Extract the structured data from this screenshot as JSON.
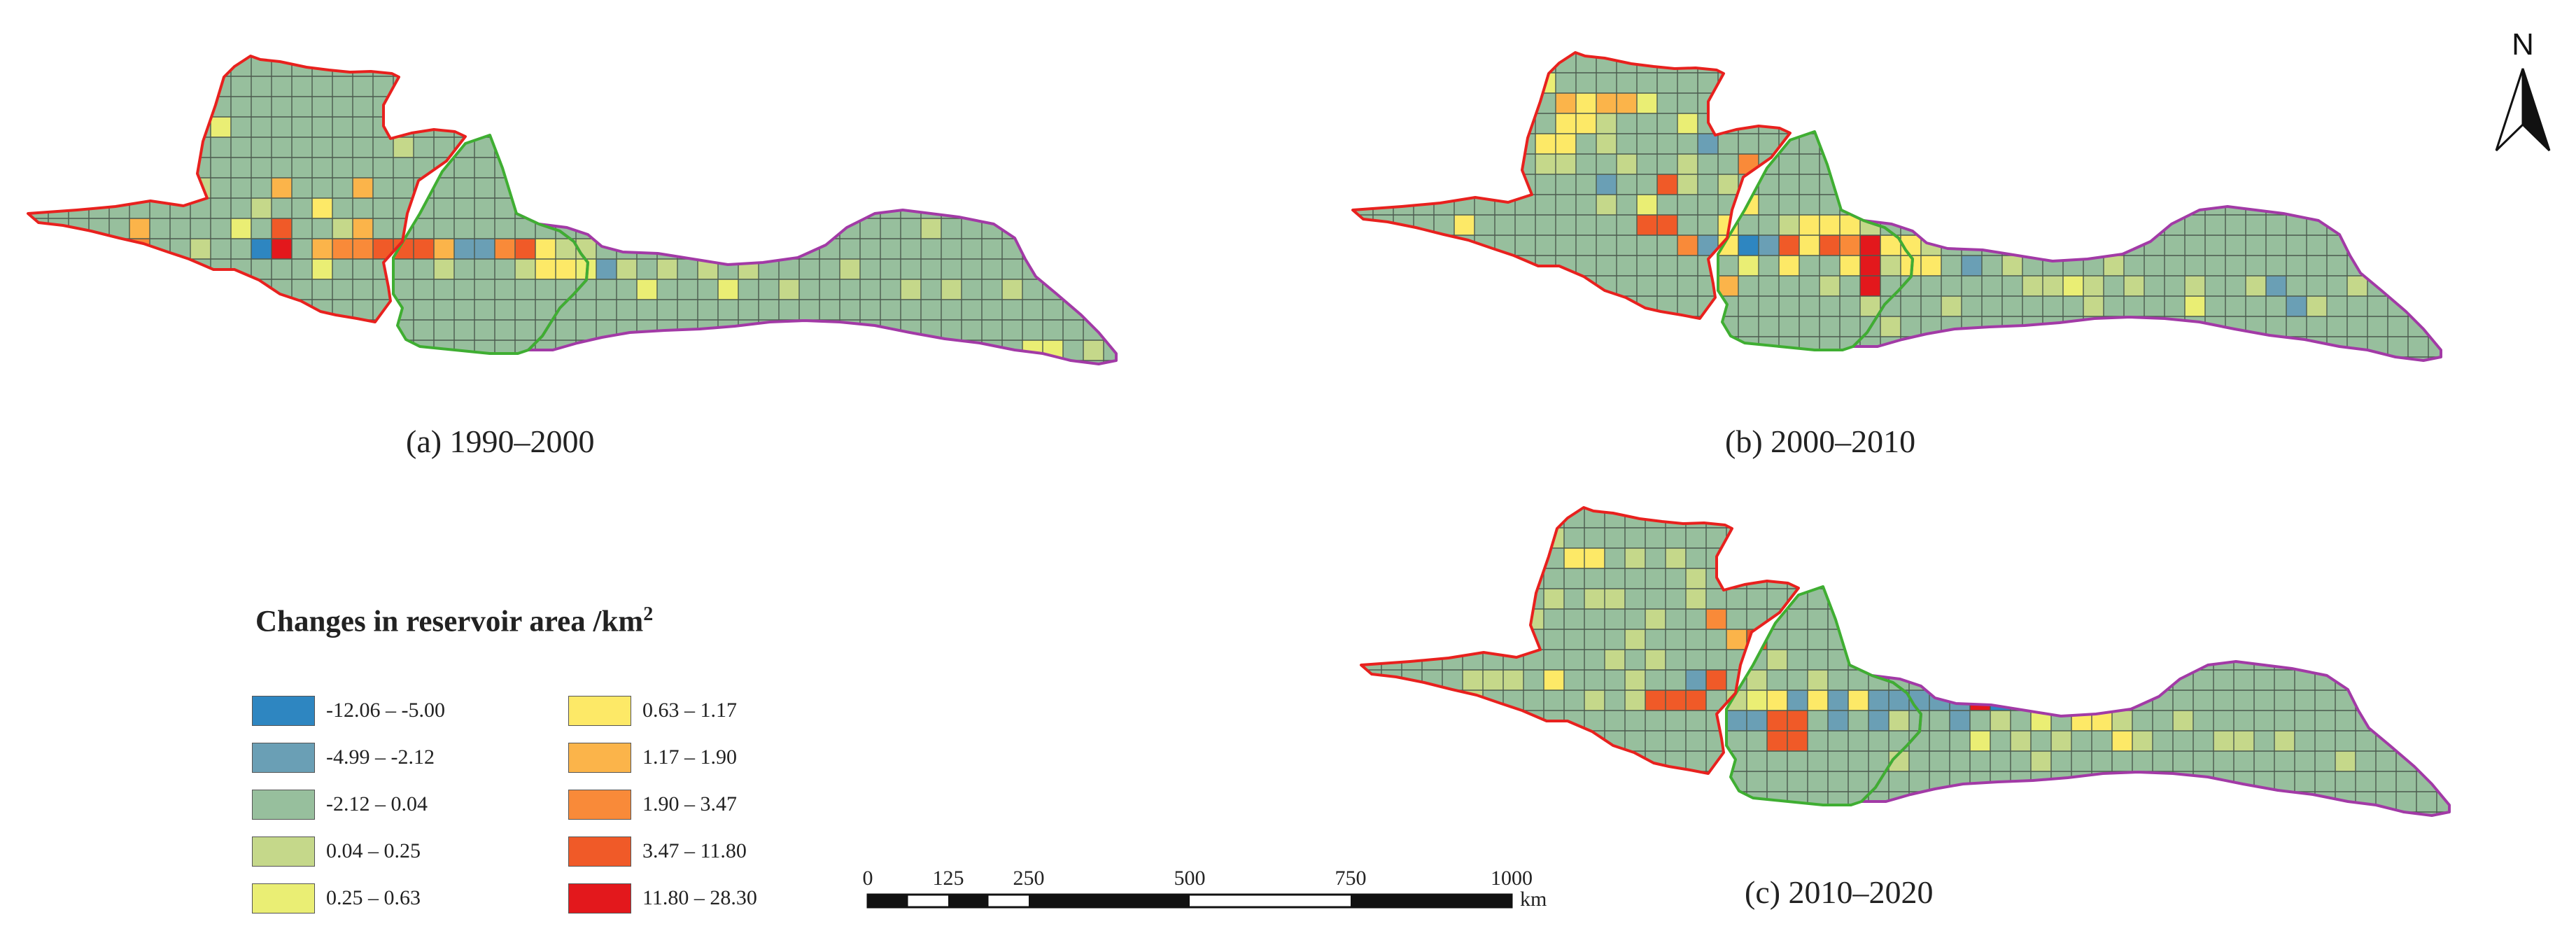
{
  "panels": [
    {
      "label": "(a) 1990–2000"
    },
    {
      "label": "(b) 2000–2010"
    },
    {
      "label": "(c) 2010–2020"
    }
  ],
  "north_arrow": {
    "letter": "N"
  },
  "legend": {
    "title": "Changes in reservoir area /km",
    "title_superscript": "2",
    "classes": [
      {
        "range": "-12.06 – -5.00",
        "color": "#2e86c1"
      },
      {
        "range": "-4.99 – -2.12",
        "color": "#6a9fb5"
      },
      {
        "range": "-2.12 – 0.04",
        "color": "#97bf9d"
      },
      {
        "range": "0.04 – 0.25",
        "color": "#c5d88a"
      },
      {
        "range": "0.25 – 0.63",
        "color": "#eaee74"
      },
      {
        "range": "0.63 – 1.17",
        "color": "#fde967"
      },
      {
        "range": "1.17 – 1.90",
        "color": "#fbb44a"
      },
      {
        "range": "1.90 – 3.47",
        "color": "#f98a39"
      },
      {
        "range": "3.47 – 11.80",
        "color": "#f05a28"
      },
      {
        "range": "11.80 – 28.30",
        "color": "#e3181c"
      }
    ]
  },
  "scale_bar": {
    "ticks": [
      "0",
      "125",
      "250",
      "500",
      "750",
      "1000"
    ],
    "unit": "km"
  },
  "colors": {
    "region_west_border": "#e8211e",
    "region_middle_border": "#3fae32",
    "region_east_border": "#a23aa6",
    "grid_line": "#4c5a4e",
    "background_cell": "#97bf9d"
  }
}
